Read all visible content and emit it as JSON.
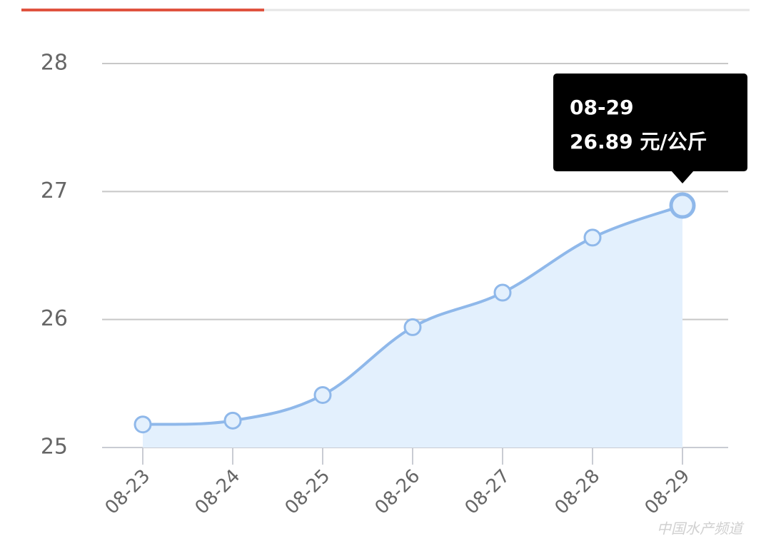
{
  "chart_data": {
    "type": "line",
    "categories": [
      "08-23",
      "08-24",
      "08-25",
      "08-26",
      "08-27",
      "08-28",
      "08-29"
    ],
    "values": [
      25.18,
      25.21,
      25.41,
      25.94,
      26.21,
      26.64,
      26.89
    ],
    "value_labels": [
      null,
      null,
      null,
      null,
      null,
      null,
      "26.89 元/公斤"
    ],
    "color": "#8fb8ea",
    "area_color": "#e3f0fd",
    "ylim": [
      25,
      28
    ],
    "yticks": [
      25,
      26,
      27,
      28
    ],
    "grid": true,
    "watermark": "中国水产频道"
  }
}
